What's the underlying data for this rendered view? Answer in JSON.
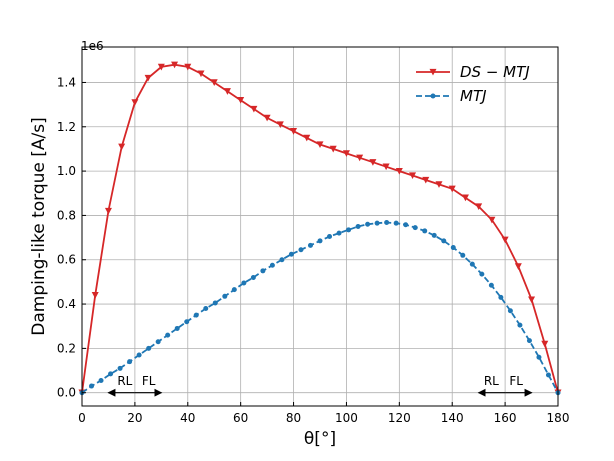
{
  "chart_data": {
    "type": "line",
    "xlabel": "θ[°]",
    "ylabel": "Damping-like torque [A/s]",
    "y_offset_label": "1e6",
    "xlim": [
      0,
      180
    ],
    "ylim": [
      -0.06,
      1.56
    ],
    "x_ticks": [
      0,
      20,
      40,
      60,
      80,
      100,
      120,
      140,
      160,
      180
    ],
    "x_tick_labels": [
      "0",
      "20",
      "40",
      "60",
      "80",
      "100",
      "120",
      "140",
      "160",
      "180"
    ],
    "y_ticks": [
      0,
      0.2,
      0.4,
      0.6,
      0.8,
      1.0,
      1.2,
      1.4
    ],
    "y_tick_labels": [
      "0.0",
      "0.2",
      "0.4",
      "0.6",
      "0.8",
      "1.0",
      "1.2",
      "1.4"
    ],
    "grid": true,
    "legend_position": "top-right",
    "series": [
      {
        "name": "DS − MTJ",
        "color": "#d62728",
        "line_style": "solid",
        "marker": "triangle-down",
        "x": [
          0,
          5,
          10,
          15,
          20,
          25,
          30,
          35,
          40,
          45,
          50,
          55,
          60,
          65,
          70,
          75,
          80,
          85,
          90,
          95,
          100,
          105,
          110,
          115,
          120,
          125,
          130,
          135,
          140,
          145,
          150,
          155,
          160,
          165,
          170,
          175,
          180
        ],
        "values": [
          0.0,
          0.44,
          0.82,
          1.11,
          1.31,
          1.42,
          1.47,
          1.48,
          1.47,
          1.44,
          1.4,
          1.36,
          1.32,
          1.28,
          1.24,
          1.21,
          1.18,
          1.15,
          1.12,
          1.1,
          1.08,
          1.06,
          1.04,
          1.02,
          1.0,
          0.98,
          0.96,
          0.94,
          0.92,
          0.88,
          0.84,
          0.78,
          0.69,
          0.57,
          0.42,
          0.22,
          0.0
        ]
      },
      {
        "name": "MTJ",
        "color": "#1f77b4",
        "line_style": "dashed",
        "marker": "circle",
        "x": [
          0,
          3.6,
          7.2,
          10.8,
          14.4,
          18,
          21.6,
          25.2,
          28.8,
          32.4,
          36,
          39.6,
          43.2,
          46.8,
          50.4,
          54,
          57.6,
          61.2,
          64.8,
          68.4,
          72,
          75.6,
          79.2,
          82.8,
          86.4,
          90,
          93.6,
          97.2,
          100.8,
          104.4,
          108,
          111.6,
          115.2,
          118.8,
          122.4,
          126,
          129.6,
          133.2,
          136.8,
          140.4,
          144,
          147.6,
          151.2,
          154.8,
          158.4,
          162,
          165.6,
          169.2,
          172.8,
          176.4,
          180
        ],
        "values": [
          0.0,
          0.03,
          0.055,
          0.085,
          0.11,
          0.14,
          0.17,
          0.2,
          0.23,
          0.26,
          0.29,
          0.32,
          0.35,
          0.38,
          0.405,
          0.435,
          0.465,
          0.495,
          0.52,
          0.55,
          0.575,
          0.6,
          0.625,
          0.645,
          0.665,
          0.685,
          0.705,
          0.72,
          0.735,
          0.75,
          0.76,
          0.765,
          0.768,
          0.765,
          0.758,
          0.745,
          0.73,
          0.71,
          0.685,
          0.655,
          0.62,
          0.58,
          0.535,
          0.485,
          0.43,
          0.37,
          0.305,
          0.235,
          0.16,
          0.08,
          0.0
        ]
      }
    ],
    "annotations": [
      {
        "text": "RL",
        "x": 16.2,
        "y": 0.034
      },
      {
        "text": "FL",
        "x": 25.2,
        "y": 0.034
      },
      {
        "text": "RL",
        "x": 154.8,
        "y": 0.034
      },
      {
        "text": "FL",
        "x": 164.2,
        "y": 0.034
      }
    ],
    "arrows": [
      {
        "from_x": 20,
        "to_x": 10,
        "y": 0.0
      },
      {
        "from_x": 20,
        "to_x": 30,
        "y": 0.0
      },
      {
        "from_x": 160,
        "to_x": 150,
        "y": 0.0
      },
      {
        "from_x": 160,
        "to_x": 170,
        "y": 0.0
      }
    ]
  }
}
